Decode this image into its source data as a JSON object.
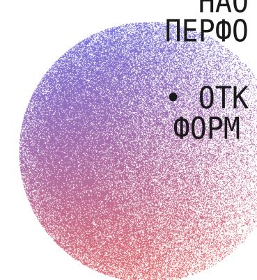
{
  "lines": [
    "НАО",
    "ПЕРФО",
    "• ОТК",
    "ФОРМ"
  ],
  "colors": {
    "gradient_top": "#6f73e6",
    "gradient_bottom": "#f06a62",
    "text": "#1a1a1a",
    "background": "#ffffff"
  }
}
